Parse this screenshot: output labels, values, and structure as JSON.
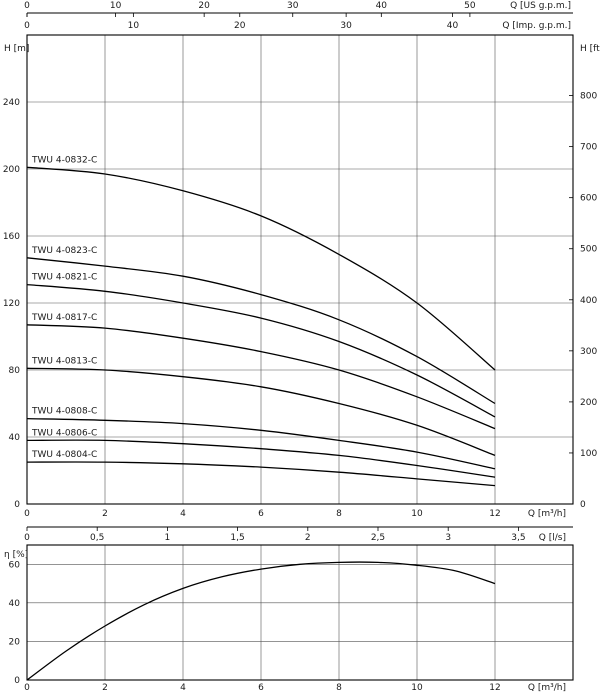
{
  "chart_data": [
    {
      "type": "line",
      "title": "",
      "xlabel": "Q [m³/h]",
      "ylabel": "H [m]",
      "ylabel_right": "H [ft]",
      "xlim": [
        0,
        14
      ],
      "ylim": [
        0,
        280
      ],
      "grid": true,
      "x_ticks": [
        "0",
        "2",
        "4",
        "6",
        "8",
        "10",
        "12"
      ],
      "y_ticks": [
        "0",
        "40",
        "80",
        "120",
        "160",
        "200",
        "240"
      ],
      "y_ticks_right": [
        "0",
        "100",
        "200",
        "300",
        "400",
        "500",
        "600",
        "700",
        "800"
      ],
      "top_axis_usgpm": {
        "label": "Q [US g.p.m.]",
        "ticks": [
          "0",
          "10",
          "20",
          "30",
          "40",
          "50"
        ]
      },
      "top_axis_impgpm": {
        "label": "Q [Imp. g.p.m.]",
        "ticks": [
          "0",
          "10",
          "20",
          "30",
          "40"
        ]
      },
      "series": [
        {
          "name": "TWU 4-0832-C",
          "x": [
            0,
            2,
            4,
            6,
            8,
            10,
            12
          ],
          "y": [
            201,
            197,
            187,
            172,
            149,
            120,
            80
          ]
        },
        {
          "name": "TWU 4-0823-C",
          "x": [
            0,
            2,
            4,
            6,
            8,
            10,
            12
          ],
          "y": [
            147,
            142,
            136,
            125,
            110,
            88,
            60
          ]
        },
        {
          "name": "TWU 4-0821-C",
          "x": [
            0,
            2,
            4,
            6,
            8,
            10,
            12
          ],
          "y": [
            131,
            127,
            120,
            111,
            97,
            77,
            52
          ]
        },
        {
          "name": "TWU 4-0817-C",
          "x": [
            0,
            2,
            4,
            6,
            8,
            10,
            12
          ],
          "y": [
            107,
            105,
            99,
            91,
            80,
            64,
            45
          ]
        },
        {
          "name": "TWU 4-0813-C",
          "x": [
            0,
            2,
            4,
            6,
            8,
            10,
            12
          ],
          "y": [
            81,
            80,
            76,
            70,
            60,
            47,
            29
          ]
        },
        {
          "name": "TWU 4-0808-C",
          "x": [
            0,
            2,
            4,
            6,
            8,
            10,
            12
          ],
          "y": [
            51,
            50,
            48,
            44,
            38,
            31,
            21
          ]
        },
        {
          "name": "TWU 4-0806-C",
          "x": [
            0,
            2,
            4,
            6,
            8,
            10,
            12
          ],
          "y": [
            38,
            38,
            36,
            33,
            29,
            23,
            16
          ]
        },
        {
          "name": "TWU 4-0804-C",
          "x": [
            0,
            2,
            4,
            6,
            8,
            10,
            12
          ],
          "y": [
            25,
            25,
            24,
            22,
            19,
            15,
            11
          ]
        }
      ]
    },
    {
      "type": "line",
      "title": "",
      "xlabel": "Q [m³/h]",
      "ylabel": "η [%]",
      "xlim": [
        0,
        14
      ],
      "ylim": [
        0,
        70
      ],
      "grid": true,
      "x_ticks": [
        "0",
        "2",
        "4",
        "6",
        "8",
        "10",
        "12"
      ],
      "y_ticks": [
        "0",
        "20",
        "40",
        "60"
      ],
      "top_axis_ls": {
        "label": "Q [l/s]",
        "ticks": [
          "0",
          "0,5",
          "1",
          "1,5",
          "2",
          "2,5",
          "3",
          "3,5"
        ]
      },
      "series": [
        {
          "x": [
            0,
            1,
            2,
            3,
            4,
            5,
            6,
            7,
            8,
            9,
            10,
            11,
            12
          ],
          "y": [
            0,
            15,
            28,
            39,
            47.5,
            53.5,
            57.5,
            60,
            61,
            61,
            59.5,
            56.5,
            50
          ]
        }
      ]
    }
  ]
}
